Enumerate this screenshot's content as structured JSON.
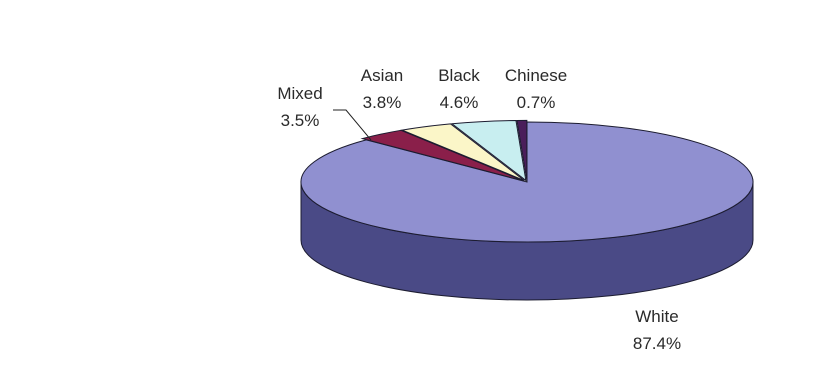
{
  "chart_data": {
    "type": "pie",
    "title": "",
    "categories": [
      "White",
      "Mixed",
      "Asian",
      "Black",
      "Chinese"
    ],
    "values": [
      87.4,
      3.5,
      3.8,
      4.6,
      0.7
    ],
    "value_labels": [
      "87.4%",
      "3.5%",
      "3.8%",
      "4.6%",
      "0.7%"
    ],
    "colors": {
      "White": "#9090d0",
      "Mixed": "#8a1f4a",
      "Asian": "#fbf6c8",
      "Black": "#c8eef0",
      "Chinese": "#4a1e5a"
    },
    "side_colors": {
      "White": "#4a4a86",
      "Mixed": "#5a1030",
      "Asian": "#c8c090",
      "Black": "#8ab0b4",
      "Chinese": "#2a1030"
    },
    "style": "3d",
    "legend": "none"
  }
}
